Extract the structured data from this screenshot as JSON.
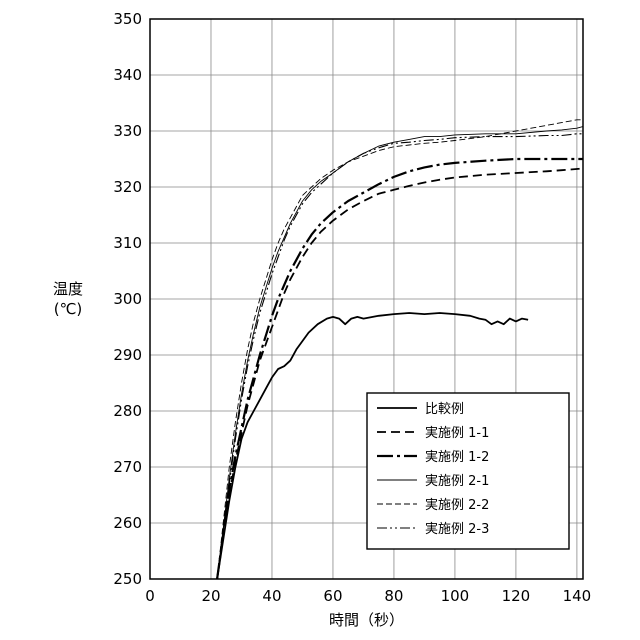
{
  "chart_data": {
    "type": "line",
    "title": "",
    "xlabel": "時間（秒）",
    "ylabel": "温度\n(℃)",
    "xlim": [
      0,
      142
    ],
    "ylim": [
      250,
      350
    ],
    "xticks": [
      0,
      20,
      40,
      60,
      80,
      100,
      120,
      140
    ],
    "yticks": [
      250,
      260,
      270,
      280,
      290,
      300,
      310,
      320,
      330,
      340,
      350
    ],
    "grid": true,
    "legend_position": "bottom-right",
    "series": [
      {
        "name": "比較例",
        "style": "solid-thick",
        "x": [
          22,
          24,
          26,
          28,
          30,
          32,
          34,
          36,
          38,
          40,
          42,
          44,
          46,
          48,
          50,
          52,
          55,
          58,
          60,
          62,
          64,
          66,
          68,
          70,
          75,
          80,
          85,
          90,
          95,
          100,
          105,
          108,
          110,
          112,
          114,
          116,
          118,
          120,
          122,
          124
        ],
        "y": [
          250,
          257,
          264,
          270,
          275,
          278,
          280,
          282,
          284,
          286,
          287.5,
          288,
          289,
          291,
          292.5,
          294,
          295.5,
          296.5,
          296.8,
          296.5,
          295.5,
          296.5,
          296.8,
          296.5,
          297,
          297.3,
          297.5,
          297.3,
          297.5,
          297.3,
          297,
          296.5,
          296.3,
          295.5,
          296,
          295.5,
          296.5,
          296,
          296.5,
          296.3
        ]
      },
      {
        "name": "実施例 1-1",
        "style": "dashed-thick",
        "x": [
          22,
          24,
          26,
          28,
          30,
          32,
          34,
          36,
          38,
          40,
          42,
          44,
          46,
          48,
          50,
          53,
          56,
          60,
          65,
          70,
          75,
          80,
          85,
          90,
          95,
          100,
          110,
          120,
          130,
          135,
          142
        ],
        "y": [
          250,
          258,
          265,
          271,
          276,
          281,
          285,
          289,
          292,
          295,
          298,
          301,
          303.5,
          305.5,
          307.5,
          310,
          312,
          314,
          316,
          317.5,
          318.8,
          319.5,
          320.2,
          320.8,
          321.3,
          321.7,
          322.2,
          322.5,
          322.8,
          323,
          323.3
        ]
      },
      {
        "name": "実施例 1-2",
        "style": "dashdot-thick",
        "x": [
          22,
          24,
          26,
          28,
          30,
          32,
          34,
          36,
          38,
          40,
          42,
          44,
          46,
          48,
          50,
          53,
          56,
          60,
          65,
          70,
          75,
          80,
          85,
          90,
          95,
          100,
          110,
          120,
          130,
          135,
          142
        ],
        "y": [
          250,
          258,
          266,
          272,
          277,
          282,
          286,
          290,
          293.5,
          297,
          300,
          302.5,
          305,
          307,
          309,
          311.5,
          313.5,
          315.5,
          317.5,
          319,
          320.5,
          321.8,
          322.8,
          323.5,
          324,
          324.3,
          324.7,
          325,
          325,
          325,
          325
        ]
      },
      {
        "name": "実施例 2-1",
        "style": "solid-thin",
        "x": [
          22,
          24,
          26,
          28,
          30,
          32,
          34,
          36,
          38,
          40,
          42,
          44,
          46,
          48,
          50,
          53,
          56,
          60,
          65,
          70,
          75,
          80,
          85,
          90,
          95,
          100,
          110,
          120,
          130,
          135,
          140,
          142
        ],
        "y": [
          250,
          259,
          268,
          276,
          283,
          289,
          294,
          298.5,
          302,
          305.5,
          308.5,
          311,
          313.5,
          315.5,
          317.5,
          319.5,
          321,
          322.5,
          324.5,
          326,
          327.3,
          328,
          328.5,
          329,
          329,
          329.3,
          329.5,
          329.5,
          330,
          330.2,
          330.5,
          330.8
        ]
      },
      {
        "name": "実施例 2-2",
        "style": "dashed-thin",
        "x": [
          22,
          24,
          26,
          28,
          30,
          32,
          34,
          36,
          38,
          40,
          42,
          44,
          46,
          48,
          50,
          53,
          56,
          60,
          65,
          70,
          75,
          80,
          85,
          90,
          95,
          100,
          110,
          120,
          130,
          135,
          140,
          142
        ],
        "y": [
          250,
          260,
          270,
          278,
          285,
          291,
          296,
          300,
          303.5,
          307,
          310,
          312.5,
          314.5,
          316.5,
          318.5,
          320,
          321.5,
          323,
          324.5,
          325.5,
          326.5,
          327.2,
          327.5,
          327.8,
          328,
          328.3,
          329,
          330,
          331,
          331.5,
          332,
          332
        ]
      },
      {
        "name": "実施例 2-3",
        "style": "dashdotdot-thin",
        "x": [
          22,
          24,
          26,
          28,
          30,
          32,
          34,
          36,
          38,
          40,
          42,
          44,
          46,
          48,
          50,
          53,
          56,
          60,
          65,
          70,
          75,
          80,
          85,
          90,
          95,
          100,
          110,
          120,
          130,
          135,
          140,
          142
        ],
        "y": [
          250,
          258.5,
          267,
          275,
          282,
          288,
          293,
          297.5,
          301,
          304.5,
          307.5,
          310.5,
          313,
          315,
          317,
          319,
          320.5,
          322.5,
          324.5,
          326,
          327,
          327.8,
          328,
          328.3,
          328.5,
          328.8,
          329,
          329,
          329.2,
          329.2,
          329.5,
          329.5
        ]
      }
    ]
  }
}
